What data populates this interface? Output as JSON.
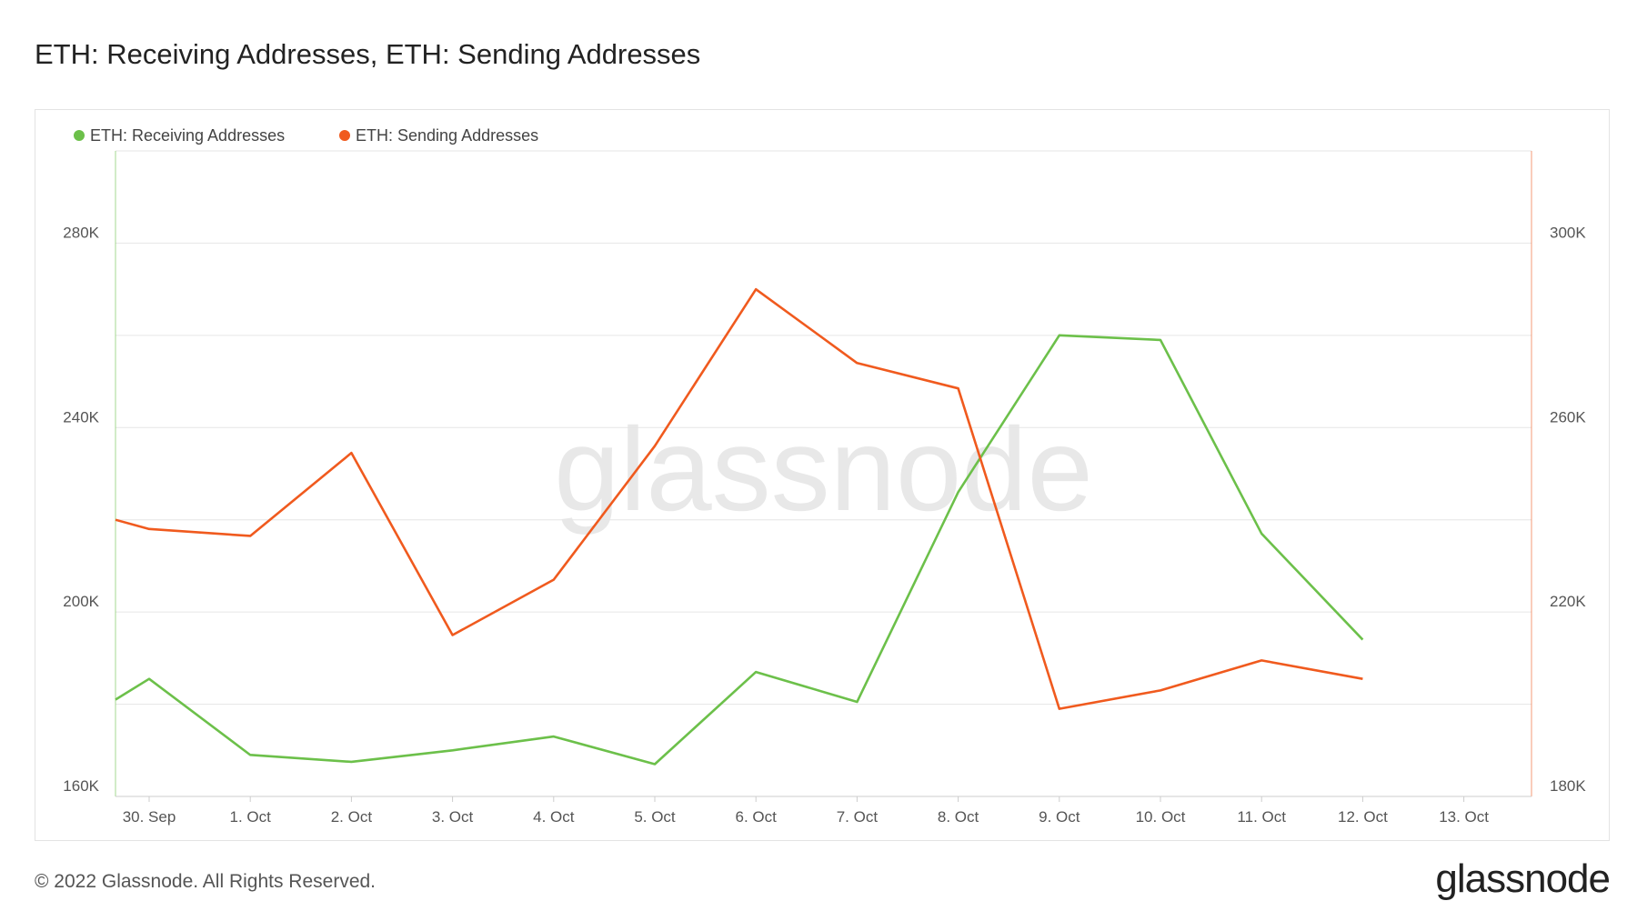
{
  "title": "ETH: Receiving Addresses, ETH: Sending Addresses",
  "footer": {
    "copyright": "© 2022 Glassnode. All Rights Reserved.",
    "brand": "glassnode"
  },
  "watermark": "glassnode",
  "colors": {
    "receiving": "#6cc04a",
    "sending": "#f05a1e",
    "grid": "#e6e6e6"
  },
  "chart_data": {
    "type": "line",
    "title": "ETH: Receiving Addresses, ETH: Sending Addresses",
    "x": [
      "30. Sep",
      "1. Oct",
      "2. Oct",
      "3. Oct",
      "4. Oct",
      "5. Oct",
      "6. Oct",
      "7. Oct",
      "8. Oct",
      "9. Oct",
      "10. Oct",
      "11. Oct",
      "12. Oct",
      "13. Oct"
    ],
    "y_left": {
      "min": 160000,
      "max": 300000,
      "ticks": [
        160000,
        200000,
        240000,
        280000
      ],
      "tick_labels": [
        "160K",
        "200K",
        "240K",
        "280K"
      ]
    },
    "y_right": {
      "min": 180000,
      "max": 320000,
      "ticks": [
        180000,
        220000,
        260000,
        300000
      ],
      "tick_labels": [
        "180K",
        "220K",
        "260K",
        "300K"
      ]
    },
    "grid": true,
    "legend": "top-left",
    "series": [
      {
        "name": "ETH: Receiving Addresses",
        "axis": "left",
        "points": [
          [
            "30. Sep",
            181000
          ],
          [
            "30. Sep",
            185500
          ],
          [
            "1. Oct",
            169000
          ],
          [
            "2. Oct",
            167500
          ],
          [
            "3. Oct",
            170000
          ],
          [
            "4. Oct",
            173000
          ],
          [
            "5. Oct",
            167000
          ],
          [
            "6. Oct",
            187000
          ],
          [
            "7. Oct",
            180500
          ],
          [
            "8. Oct",
            226000
          ],
          [
            "9. Oct",
            260000
          ],
          [
            "10. Oct",
            259000
          ],
          [
            "11. Oct",
            217000
          ],
          [
            "12. Oct",
            194000
          ]
        ]
      },
      {
        "name": "ETH: Sending Addresses",
        "axis": "right",
        "points": [
          [
            "30. Sep",
            240000
          ],
          [
            "30. Sep",
            238000
          ],
          [
            "1. Oct",
            236500
          ],
          [
            "2. Oct",
            254500
          ],
          [
            "3. Oct",
            215000
          ],
          [
            "4. Oct",
            227000
          ],
          [
            "5. Oct",
            256000
          ],
          [
            "6. Oct",
            290000
          ],
          [
            "7. Oct",
            274000
          ],
          [
            "8. Oct",
            268500
          ],
          [
            "9. Oct",
            199000
          ],
          [
            "10. Oct",
            203000
          ],
          [
            "11. Oct",
            209500
          ],
          [
            "12. Oct",
            205500
          ]
        ]
      }
    ]
  }
}
